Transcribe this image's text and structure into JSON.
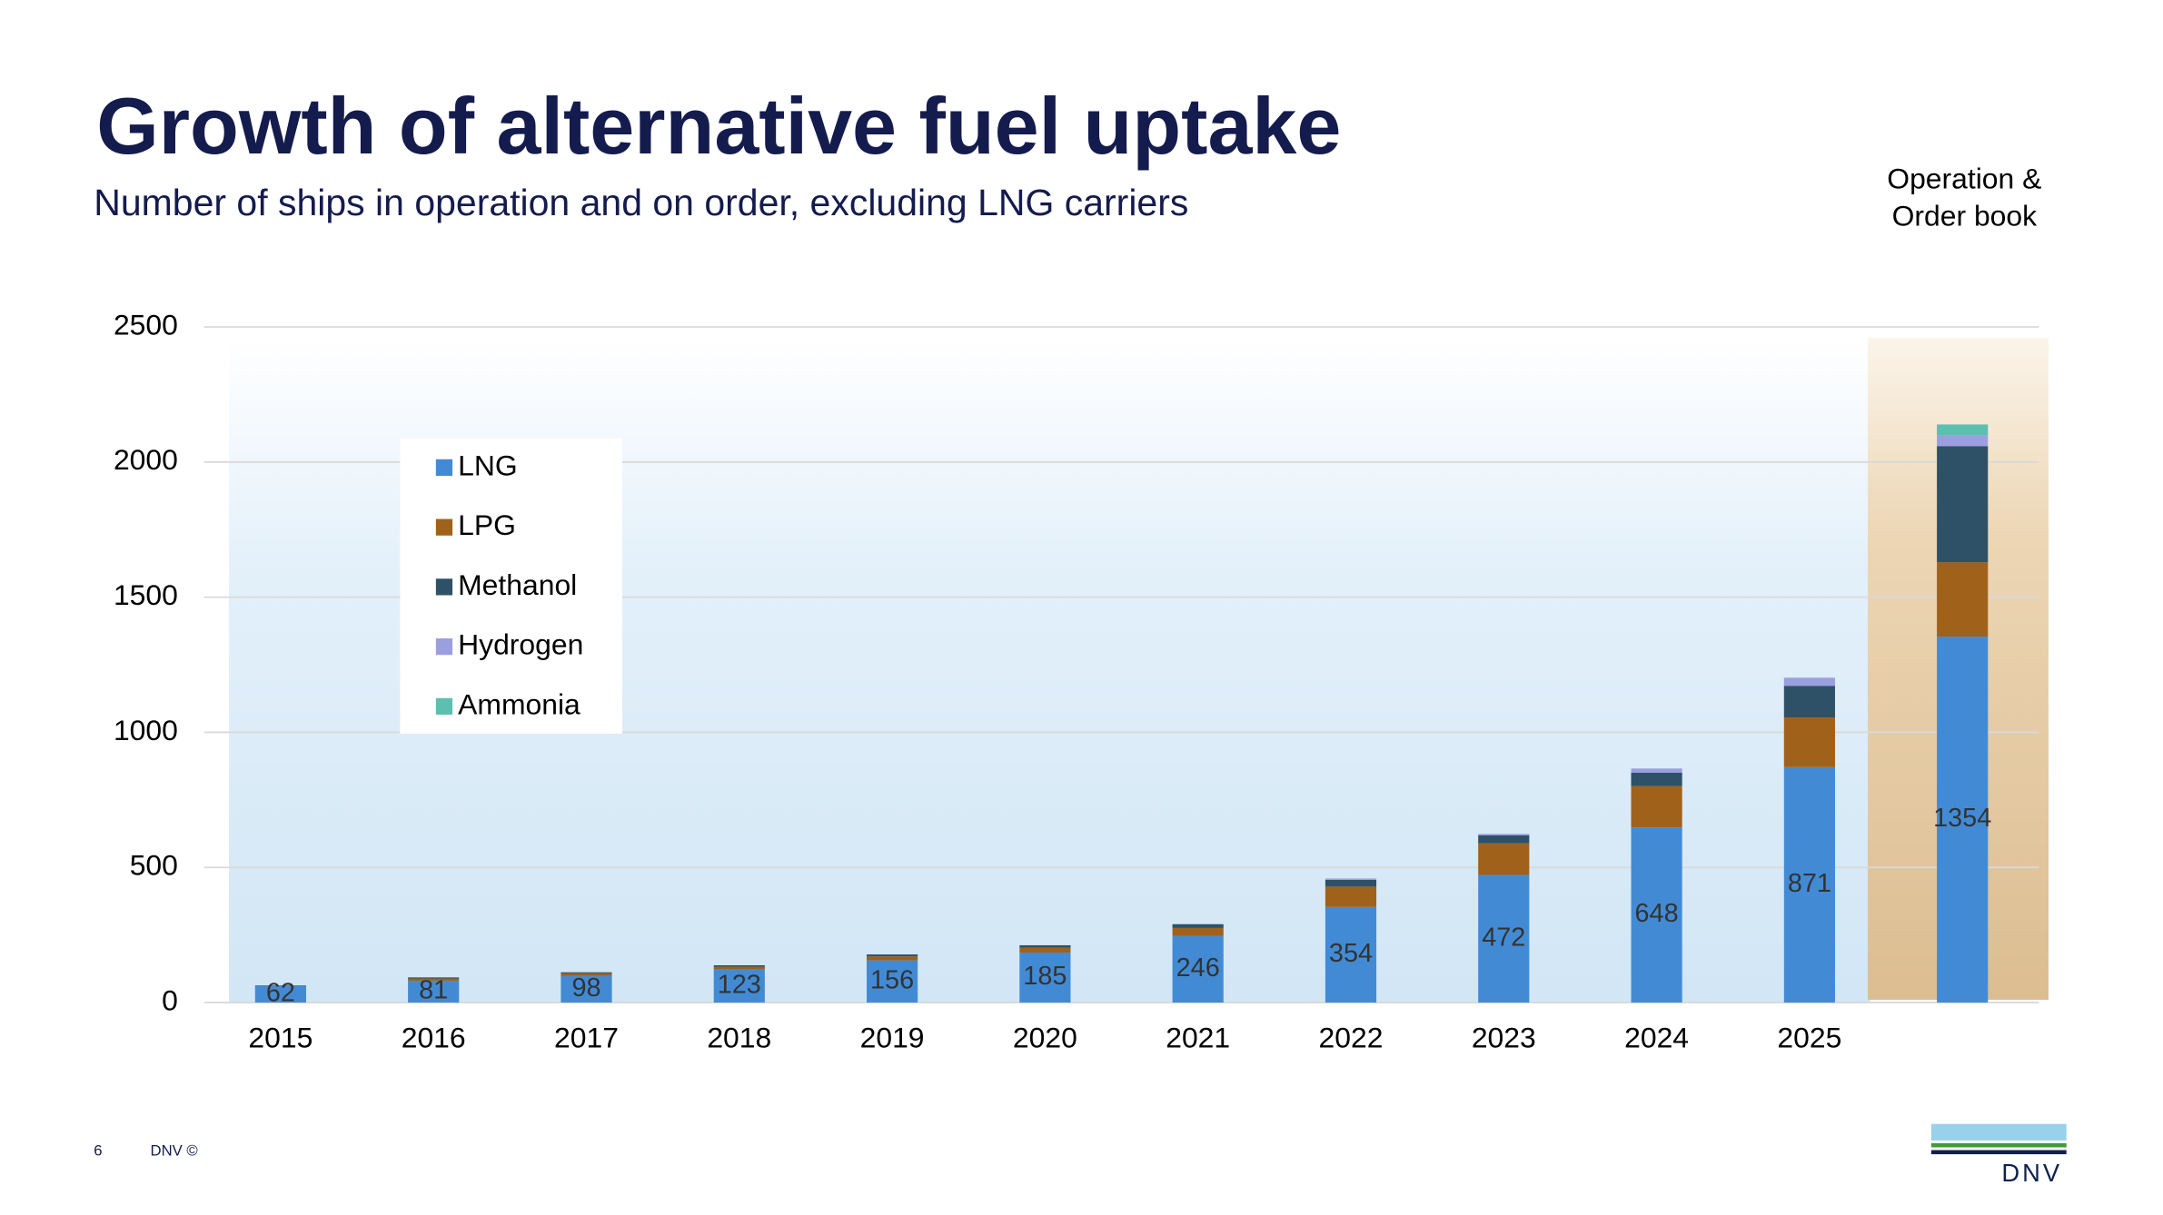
{
  "chart_data": {
    "type": "stacked_bar",
    "title": "Growth of alternative fuel uptake",
    "subtitle": "Number of ships in operation and on order, excluding LNG carriers",
    "annotation": [
      "Operation &",
      "Order book"
    ],
    "categories": [
      "2015",
      "2016",
      "2017",
      "2018",
      "2019",
      "2020",
      "2021",
      "2022",
      "2023",
      "2024",
      "2025",
      null
    ],
    "series": [
      {
        "name": "LNG",
        "color": "#428bd4",
        "values": [
          62,
          81,
          98,
          123,
          156,
          185,
          246,
          354,
          472,
          648,
          871,
          1354
        ]
      },
      {
        "name": "LPG",
        "color": "#a0611a",
        "values": [
          2,
          8,
          10,
          10,
          15,
          18,
          30,
          75,
          117,
          153,
          184,
          275
        ]
      },
      {
        "name": "Methanol",
        "color": "#2e5168",
        "values": [
          0,
          4,
          4,
          5,
          7,
          9,
          14,
          25,
          30,
          50,
          117,
          430
        ]
      },
      {
        "name": "Hydrogen",
        "color": "#9b9fe0",
        "values": [
          0,
          0,
          0,
          0,
          0,
          0,
          0,
          5,
          5,
          15,
          30,
          40
        ]
      },
      {
        "name": "Ammonia",
        "color": "#5cbfb0",
        "values": [
          0,
          0,
          0,
          0,
          0,
          0,
          0,
          0,
          0,
          0,
          0,
          40
        ]
      }
    ],
    "ylim": [
      0,
      2500
    ],
    "yticks": [
      0,
      500,
      1000,
      1500,
      2000,
      2500
    ],
    "grid": true,
    "legend": "upper left"
  },
  "footer": {
    "page": "6",
    "copyright": "DNV ©",
    "logo": "DNV"
  }
}
